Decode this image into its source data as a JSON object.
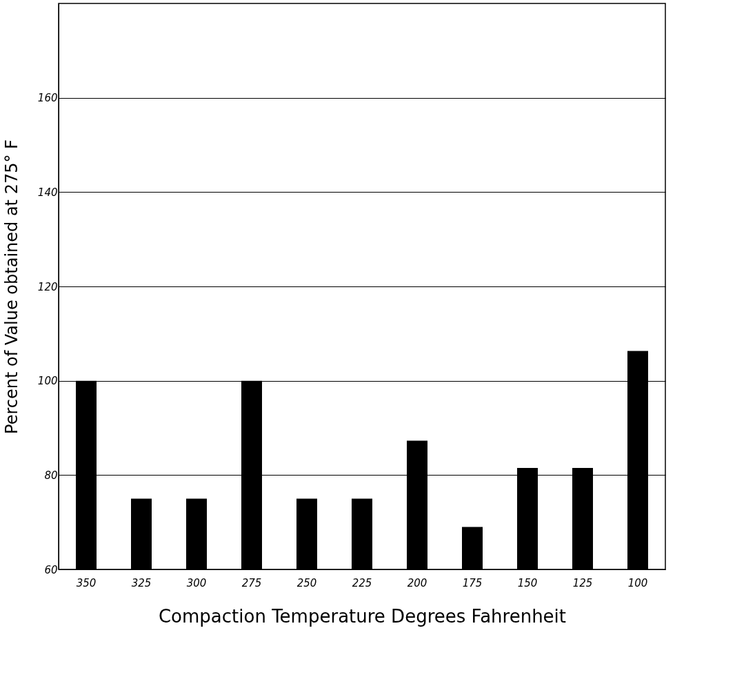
{
  "chart_data": {
    "type": "bar",
    "xlabel": "Compaction Temperature Degrees Fahrenheit",
    "ylabel": "Percent of Value obtained at 275° F",
    "categories": [
      "350",
      "325",
      "300",
      "275",
      "250",
      "225",
      "200",
      "175",
      "150",
      "125",
      "100"
    ],
    "values": [
      100,
      75,
      75,
      100,
      75,
      75,
      87.3,
      69,
      81.5,
      81.5,
      106.3
    ],
    "color": "#000000",
    "ylim": [
      60,
      180
    ],
    "yticks": [
      60,
      80,
      100,
      120,
      140,
      160
    ],
    "grid": "y"
  }
}
